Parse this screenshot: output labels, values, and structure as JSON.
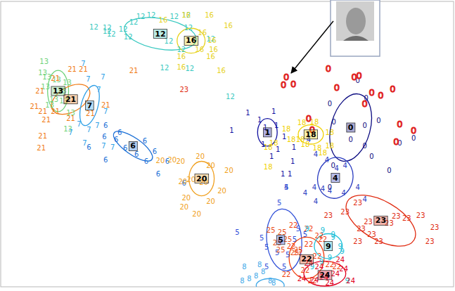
{
  "chart_data": {
    "type": "scatter",
    "tick_labels": false,
    "grid": false,
    "xlim": [
      0,
      647
    ],
    "ylim": [
      414,
      0
    ],
    "series": [
      {
        "name": "12",
        "color": "#38c8c0",
        "marker": "label",
        "x": [
          133,
          152,
          158,
          175,
          190,
          200,
          215,
          248,
          265,
          268,
          240,
          258,
          270,
          234,
          300,
          182,
          152,
          328
        ],
        "values": [
          37,
          43,
          47,
          40,
          30,
          22,
          20,
          22,
          20,
          38,
          58,
          70,
          97,
          96,
          55,
          52,
          38,
          138
        ],
        "center": [
          228,
          47
        ],
        "ellipse": {
          "cx": 228,
          "cy": 47,
          "rx": 52,
          "ry": 22,
          "angle": 10
        }
      },
      {
        "name": "16",
        "color": "#e6d21e",
        "marker": "label",
        "x": [
          232,
          265,
          298,
          325,
          288,
          302,
          284,
          258,
          300,
          315,
          258,
          304
        ],
        "values": [
          27,
          20,
          20,
          35,
          45,
          57,
          70,
          80,
          80,
          100,
          95,
          70
        ],
        "center": [
          272,
          57
        ],
        "ellipse": {
          "cx": 272,
          "cy": 57,
          "rx": 20,
          "ry": 18,
          "angle": 0
        }
      },
      {
        "name": "13",
        "color": "#6ed27a",
        "marker": "label",
        "x": [
          62,
          60,
          66,
          80,
          76,
          70,
          88,
          64,
          95,
          90,
          100,
          96
        ],
        "values": [
          87,
          104,
          110,
          114,
          142,
          150,
          130,
          124,
          118,
          144,
          162,
          185
        ],
        "center": [
          82,
          130
        ],
        "ellipse": {
          "cx": 82,
          "cy": 130,
          "rx": 15,
          "ry": 30,
          "angle": 0
        }
      },
      {
        "name": "21",
        "color": "#f07a14",
        "marker": "label",
        "x": [
          102,
          118,
          190,
          78,
          56,
          48,
          60,
          78,
          65,
          60,
          58,
          100,
          150,
          128
        ],
        "values": [
          98,
          98,
          100,
          112,
          130,
          152,
          160,
          160,
          172,
          195,
          213,
          170,
          150,
          163
        ],
        "center": [
          100,
          142
        ],
        "ellipse": {
          "cx": 100,
          "cy": 142,
          "rx": 30,
          "ry": 18,
          "angle": -30
        }
      },
      {
        "name": "7",
        "color": "#2e9fe6",
        "marker": "label",
        "x": [
          118,
          146,
          125,
          140,
          150,
          112,
          126,
          138,
          100,
          147,
          160,
          120
        ],
        "values": [
          90,
          110,
          113,
          128,
          160,
          178,
          186,
          180,
          190,
          210,
          212,
          205
        ],
        "center": [
          127,
          151
        ],
        "ellipse": {
          "cx": 127,
          "cy": 151,
          "rx": 12,
          "ry": 30,
          "angle": 15
        }
      },
      {
        "name": "6",
        "color": "#1a6fd6",
        "marker": "label",
        "x": [
          150,
          170,
          148,
          165,
          206,
          220,
          194,
          178,
          208,
          225,
          238,
          262,
          150,
          126
        ],
        "values": [
          180,
          190,
          196,
          200,
          202,
          218,
          222,
          213,
          232,
          250,
          232,
          264,
          230,
          212
        ],
        "center": [
          189,
          210
        ],
        "ellipse": {
          "cx": 189,
          "cy": 210,
          "rx": 33,
          "ry": 12,
          "angle": 35
        }
      },
      {
        "name": "20",
        "color": "#f0a020",
        "marker": "label",
        "x": [
          228,
          245,
          257,
          285,
          300,
          326,
          316,
          300,
          265,
          262,
          280,
          272,
          260,
          290
        ],
        "values": [
          231,
          230,
          232,
          225,
          238,
          245,
          275,
          290,
          285,
          298,
          308,
          258,
          262,
          263
        ],
        "center": [
          287,
          257
        ],
        "ellipse": {
          "cx": 287,
          "cy": 257,
          "rx": 18,
          "ry": 25,
          "angle": 0
        }
      },
      {
        "name": "1",
        "color": "#1010a0",
        "marker": "label",
        "x": [
          353,
          370,
          378,
          394,
          405,
          419,
          387,
          396,
          417,
          413,
          403,
          375,
          390,
          330
        ],
        "values": [
          162,
          172,
          183,
          180,
          196,
          212,
          225,
          215,
          232,
          250,
          250,
          208,
          160,
          187
        ],
        "center": [
          381,
          190
        ],
        "ellipse": {
          "cx": 381,
          "cy": 190,
          "rx": 14,
          "ry": 20,
          "angle": 0
        }
      },
      {
        "name": "18",
        "color": "#f0d000",
        "marker": "label",
        "x": [
          382,
          390,
          430,
          448,
          470,
          470,
          452,
          435,
          428,
          408,
          415,
          382,
          460
        ],
        "values": [
          212,
          205,
          176,
          175,
          190,
          210,
          213,
          208,
          200,
          185,
          200,
          240,
          220
        ],
        "center": [
          443,
          193
        ],
        "ellipse": {
          "cx": 443,
          "cy": 193,
          "rx": 18,
          "ry": 14,
          "angle": 0
        }
      },
      {
        "name": "0",
        "color": "#0a0a80",
        "marker": "label",
        "x": [
          470,
          510,
          522,
          540,
          520,
          500,
          476,
          530,
          555,
          570,
          590,
          520,
          470,
          475
        ],
        "values": [
          148,
          115,
          140,
          173,
          180,
          200,
          175,
          225,
          245,
          205,
          198,
          210,
          270,
          238
        ],
        "center": [
          500,
          183
        ],
        "ellipse": {
          "cx": 500,
          "cy": 183,
          "rx": 28,
          "ry": 50,
          "angle": 15
        }
      },
      {
        "name": "0",
        "color": "#e02020",
        "marker": "outline",
        "x": [
          408,
          418,
          404,
          468,
          505,
          512,
          530,
          543,
          520,
          560,
          440,
          445,
          570,
          590,
          565,
          480
        ],
        "values": [
          110,
          120,
          121,
          97,
          110,
          108,
          132,
          136,
          148,
          127,
          170,
          186,
          178,
          187,
          203,
          125
        ]
      },
      {
        "name": "4",
        "color": "#2a3cc0",
        "marker": "label",
        "x": [
          440,
          450,
          466,
          480,
          492,
          448,
          460,
          470,
          490,
          510,
          520,
          435,
          450,
          408
        ],
        "values": [
          200,
          222,
          230,
          242,
          238,
          270,
          272,
          275,
          278,
          270,
          287,
          278,
          290,
          270
        ],
        "center": [
          478,
          256
        ],
        "ellipse": {
          "cx": 478,
          "cy": 256,
          "rx": 25,
          "ry": 30,
          "angle": 15
        }
      },
      {
        "name": "23",
        "color": "#e02a10",
        "marker": "label",
        "x": [
          510,
          525,
          515,
          530,
          555,
          565,
          580,
          600,
          620,
          613,
          540,
          492,
          510,
          468,
          262
        ],
        "values": [
          292,
          320,
          330,
          338,
          322,
          312,
          315,
          310,
          328,
          348,
          348,
          305,
          348,
          311,
          128
        ],
        "center": [
          543,
          318
        ],
        "ellipse": {
          "cx": 543,
          "cy": 318,
          "rx": 55,
          "ry": 28,
          "angle": 30
        }
      },
      {
        "name": "5",
        "color": "#3050d8",
        "marker": "label",
        "x": [
          408,
          398,
          373,
          380,
          395,
          410,
          425,
          420,
          435,
          380,
          405,
          338
        ],
        "values": [
          270,
          292,
          343,
          356,
          365,
          368,
          330,
          345,
          338,
          385,
          385,
          335
        ],
        "center": [
          400,
          346
        ],
        "ellipse": {
          "cx": 405,
          "cy": 346,
          "rx": 25,
          "ry": 45,
          "angle": -5
        }
      },
      {
        "name": "25",
        "color": "#e85020",
        "marker": "label",
        "x": [
          386,
          402,
          410,
          420,
          400,
          395,
          425
        ],
        "values": [
          332,
          335,
          345,
          365,
          360,
          350,
          360
        ]
      },
      {
        "name": "22",
        "color": "#f04010",
        "marker": "label",
        "x": [
          418,
          440,
          455,
          440,
          415,
          425,
          452,
          470,
          408,
          435,
          445,
          480,
          460
        ],
        "values": [
          325,
          330,
          340,
          352,
          355,
          365,
          370,
          382,
          396,
          390,
          405,
          385,
          345
        ],
        "center": [
          437,
          374
        ],
        "ellipse": {
          "cx": 437,
          "cy": 372,
          "rx": 25,
          "ry": 30,
          "angle": 0
        }
      },
      {
        "name": "9",
        "color": "#20c0d8",
        "marker": "label",
        "x": [
          438,
          460,
          475,
          485,
          488,
          470,
          458,
          475,
          445,
          495
        ],
        "values": [
          330,
          332,
          342,
          355,
          362,
          372,
          378,
          338,
          385,
          405
        ],
        "center": [
          468,
          355
        ],
        "ellipse": {
          "cx": 468,
          "cy": 355,
          "rx": 20,
          "ry": 18,
          "angle": 0
        }
      },
      {
        "name": "24",
        "color": "#e00020",
        "marker": "label",
        "x": [
          440,
          455,
          462,
          470,
          478,
          490,
          500,
          448,
          430,
          485
        ],
        "values": [
          380,
          385,
          400,
          408,
          395,
          388,
          405,
          404,
          402,
          375
        ],
        "center": [
          463,
          397
        ],
        "ellipse": {
          "cx": 463,
          "cy": 395,
          "rx": 30,
          "ry": 18,
          "angle": 0
        }
      },
      {
        "name": "8",
        "color": "#40a8e8",
        "marker": "label",
        "x": [
          345,
          355,
          365,
          375,
          385,
          370,
          390,
          348
        ],
        "values": [
          405,
          402,
          398,
          392,
          405,
          382,
          408,
          385
        ],
        "ellipse": {
          "cx": 385,
          "cy": 412,
          "rx": 20,
          "ry": 10,
          "angle": 0
        }
      }
    ]
  }
}
